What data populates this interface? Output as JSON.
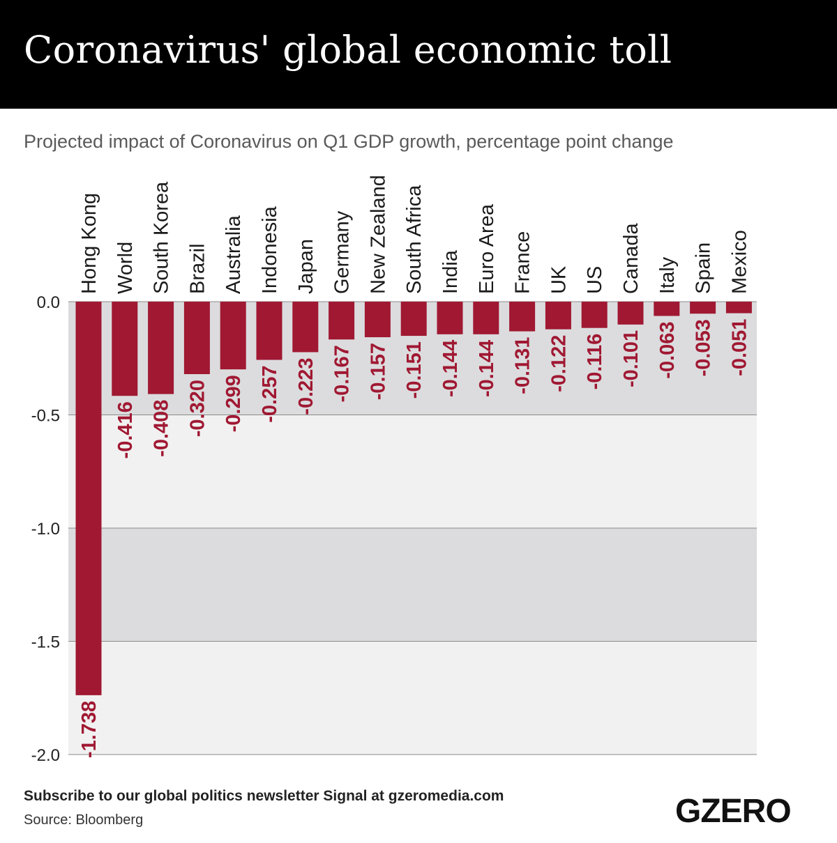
{
  "header": {
    "title": "Coronavirus' global economic toll"
  },
  "subtitle": "Projected impact of Coronavirus on Q1 GDP growth, percentage point change",
  "footer": {
    "subscribe": "Subscribe to our global politics newsletter Signal at gzeromedia.com",
    "source": "Source: Bloomberg",
    "logo": "GZERO"
  },
  "colors": {
    "bar": "#a01832",
    "label": "#a01832",
    "band_dark": "#dcdcde",
    "band_light": "#f1f1f1",
    "header_bg": "#000000"
  },
  "chart_data": {
    "type": "bar",
    "categories": [
      "Hong Kong",
      "World",
      "South Korea",
      "Brazil",
      "Australia",
      "Indonesia",
      "Japan",
      "Germany",
      "New Zealand",
      "South Africa",
      "India",
      "Euro Area",
      "France",
      "UK",
      "US",
      "Canada",
      "Italy",
      "Spain",
      "Mexico"
    ],
    "values": [
      -1.738,
      -0.416,
      -0.408,
      -0.32,
      -0.299,
      -0.257,
      -0.223,
      -0.167,
      -0.157,
      -0.151,
      -0.144,
      -0.144,
      -0.131,
      -0.122,
      -0.116,
      -0.101,
      -0.063,
      -0.053,
      -0.051
    ],
    "value_labels": [
      "-1.738",
      "-0.416",
      "-0.408",
      "-0.320",
      "-0.299",
      "-0.257",
      "-0.223",
      "-0.167",
      "-0.157",
      "-0.151",
      "-0.144",
      "-0.144",
      "-0.131",
      "-0.122",
      "-0.116",
      "-0.101",
      "-0.063",
      "-0.053",
      "-0.051"
    ],
    "y_ticks": [
      "0.0",
      "-0.5",
      "-1.0",
      "-1.5",
      "-2.0"
    ],
    "y_tick_values": [
      0,
      -0.5,
      -1.0,
      -1.5,
      -2.0
    ],
    "ylim": [
      -2.0,
      0.0
    ],
    "xlabel": "",
    "ylabel": "",
    "grid": true
  }
}
